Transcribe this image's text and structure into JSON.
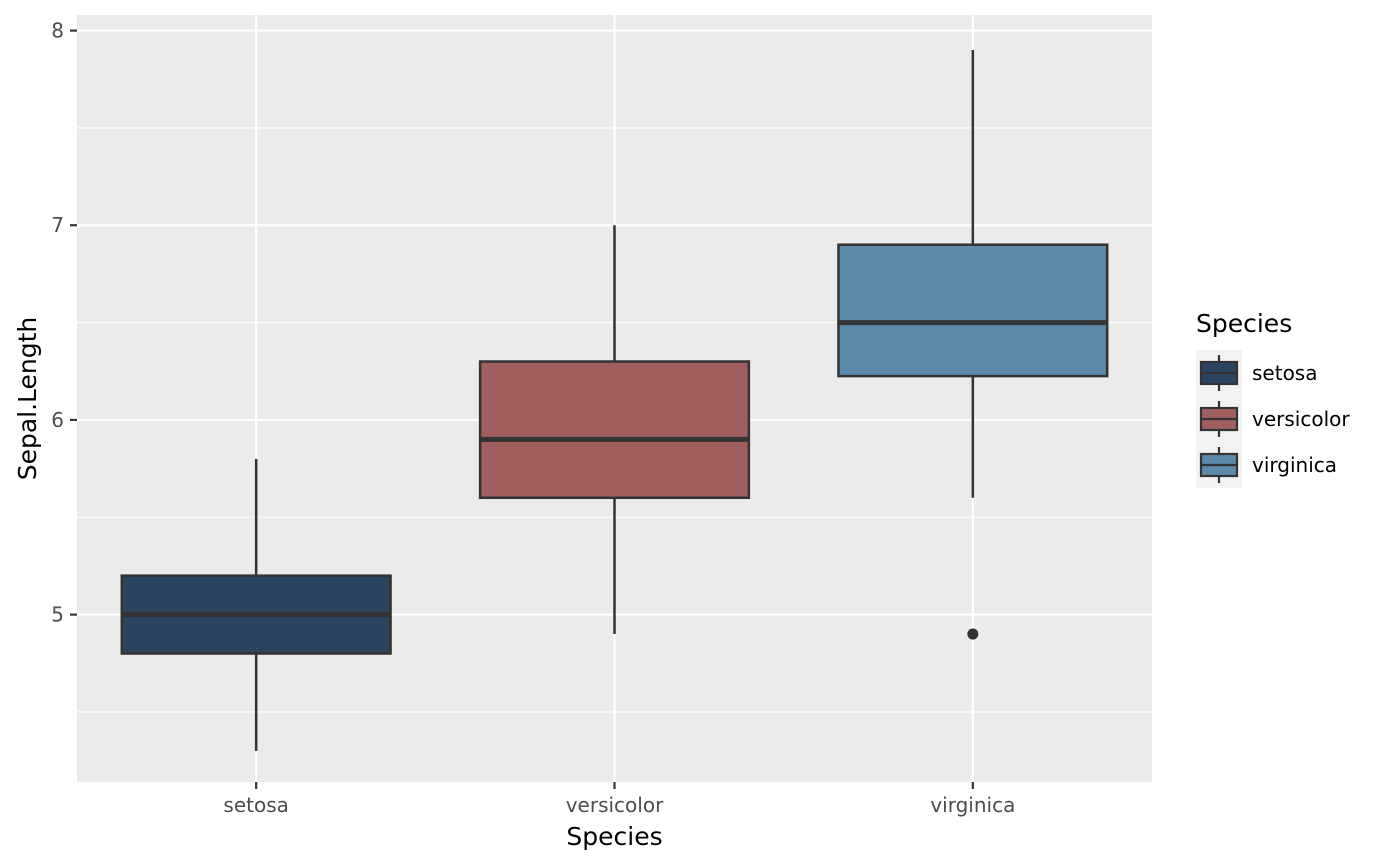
{
  "chart_data": {
    "type": "box",
    "xlabel": "Species",
    "ylabel": "Sepal.Length",
    "ylim": [
      4.14,
      8.08
    ],
    "yticks": [
      5,
      6,
      7,
      8
    ],
    "y_minor_ticks": [
      4.5,
      5.5,
      6.5,
      7.5
    ],
    "categories": [
      "setosa",
      "versicolor",
      "virginica"
    ],
    "series": [
      {
        "name": "setosa",
        "color": "#2b4560",
        "whisker_low": 4.3,
        "q1": 4.8,
        "median": 5.0,
        "q3": 5.2,
        "whisker_high": 5.8,
        "outliers": []
      },
      {
        "name": "versicolor",
        "color": "#a05f5e",
        "whisker_low": 4.9,
        "q1": 5.6,
        "median": 5.9,
        "q3": 6.3,
        "whisker_high": 7.0,
        "outliers": []
      },
      {
        "name": "virginica",
        "color": "#5b8aab",
        "whisker_low": 5.6,
        "q1": 6.225,
        "median": 6.5,
        "q3": 6.9,
        "whisker_high": 7.9,
        "outliers": [
          4.9
        ]
      }
    ],
    "legend": {
      "title": "Species",
      "placement": "right",
      "items": [
        "setosa",
        "versicolor",
        "virginica"
      ]
    },
    "grid": true,
    "panel_background": "#ebebeb",
    "grid_color": "#ffffff",
    "outline_color": "#333333"
  }
}
